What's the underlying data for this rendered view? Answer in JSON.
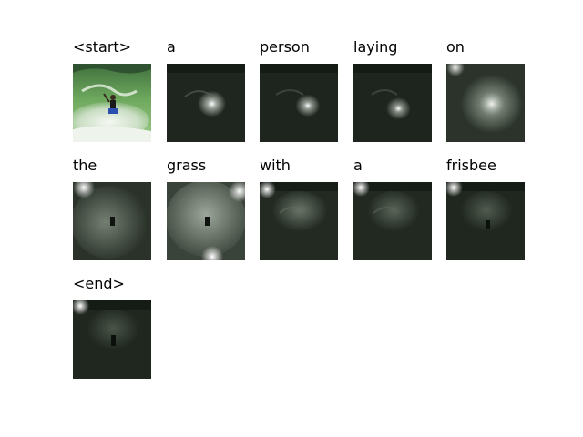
{
  "caption_tokens": [
    {
      "word": "<start>",
      "kind": "image"
    },
    {
      "word": "a",
      "kind": "attention"
    },
    {
      "word": "person",
      "kind": "attention"
    },
    {
      "word": "laying",
      "kind": "attention"
    },
    {
      "word": "on",
      "kind": "attention"
    },
    {
      "word": "the",
      "kind": "attention"
    },
    {
      "word": "grass",
      "kind": "attention"
    },
    {
      "word": "with",
      "kind": "attention"
    },
    {
      "word": "a",
      "kind": "attention"
    },
    {
      "word": "frisbee",
      "kind": "attention"
    },
    {
      "word": "<end>",
      "kind": "attention"
    }
  ],
  "colors": {
    "background": "#ffffff",
    "text": "#000000",
    "overlay_dark": "#1e241d",
    "attention_glow": "#ffffff",
    "wave_green": "#5c9a4e",
    "foam_white": "#e8eee6"
  }
}
